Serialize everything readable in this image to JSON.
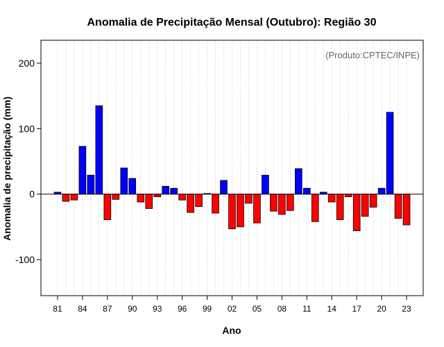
{
  "chart_data": {
    "type": "bar",
    "title": "Anomalia de Precipitação Mensal (Outubro): Região 30",
    "xlabel": "Ano",
    "ylabel": "Anomalia de precipitação (mm)",
    "credit": "(Produto:CPTEC/INPE)",
    "ylim": [
      -155,
      235
    ],
    "yticks": [
      -100,
      0,
      100,
      200
    ],
    "xtick_labels": [
      "81",
      "84",
      "87",
      "90",
      "93",
      "96",
      "99",
      "02",
      "05",
      "08",
      "11",
      "14",
      "17",
      "20",
      "23"
    ],
    "xtick_every": 3,
    "categories": [
      "1981",
      "1982",
      "1983",
      "1984",
      "1985",
      "1986",
      "1987",
      "1988",
      "1989",
      "1990",
      "1991",
      "1992",
      "1993",
      "1994",
      "1995",
      "1996",
      "1997",
      "1998",
      "1999",
      "2000",
      "2001",
      "2002",
      "2003",
      "2004",
      "2005",
      "2006",
      "2007",
      "2008",
      "2009",
      "2010",
      "2011",
      "2012",
      "2013",
      "2014",
      "2015",
      "2016",
      "2017",
      "2018",
      "2019",
      "2020",
      "2021",
      "2022",
      "2023"
    ],
    "values": [
      3,
      -11,
      -9,
      73,
      29,
      135,
      -39,
      -8,
      40,
      24,
      -12,
      -22,
      -4,
      12,
      9,
      -9,
      -28,
      -19,
      1,
      -29,
      21,
      -53,
      -50,
      -14,
      -44,
      29,
      -26,
      -31,
      -25,
      39,
      9,
      -42,
      3,
      -12,
      -39,
      -4,
      -56,
      -34,
      -20,
      9,
      125,
      -37,
      -47
    ],
    "colors": {
      "positive": "#0000ff",
      "negative": "#ff0000",
      "zero_line": "#000000",
      "grid": "#d3d3d3"
    },
    "grid": true
  }
}
